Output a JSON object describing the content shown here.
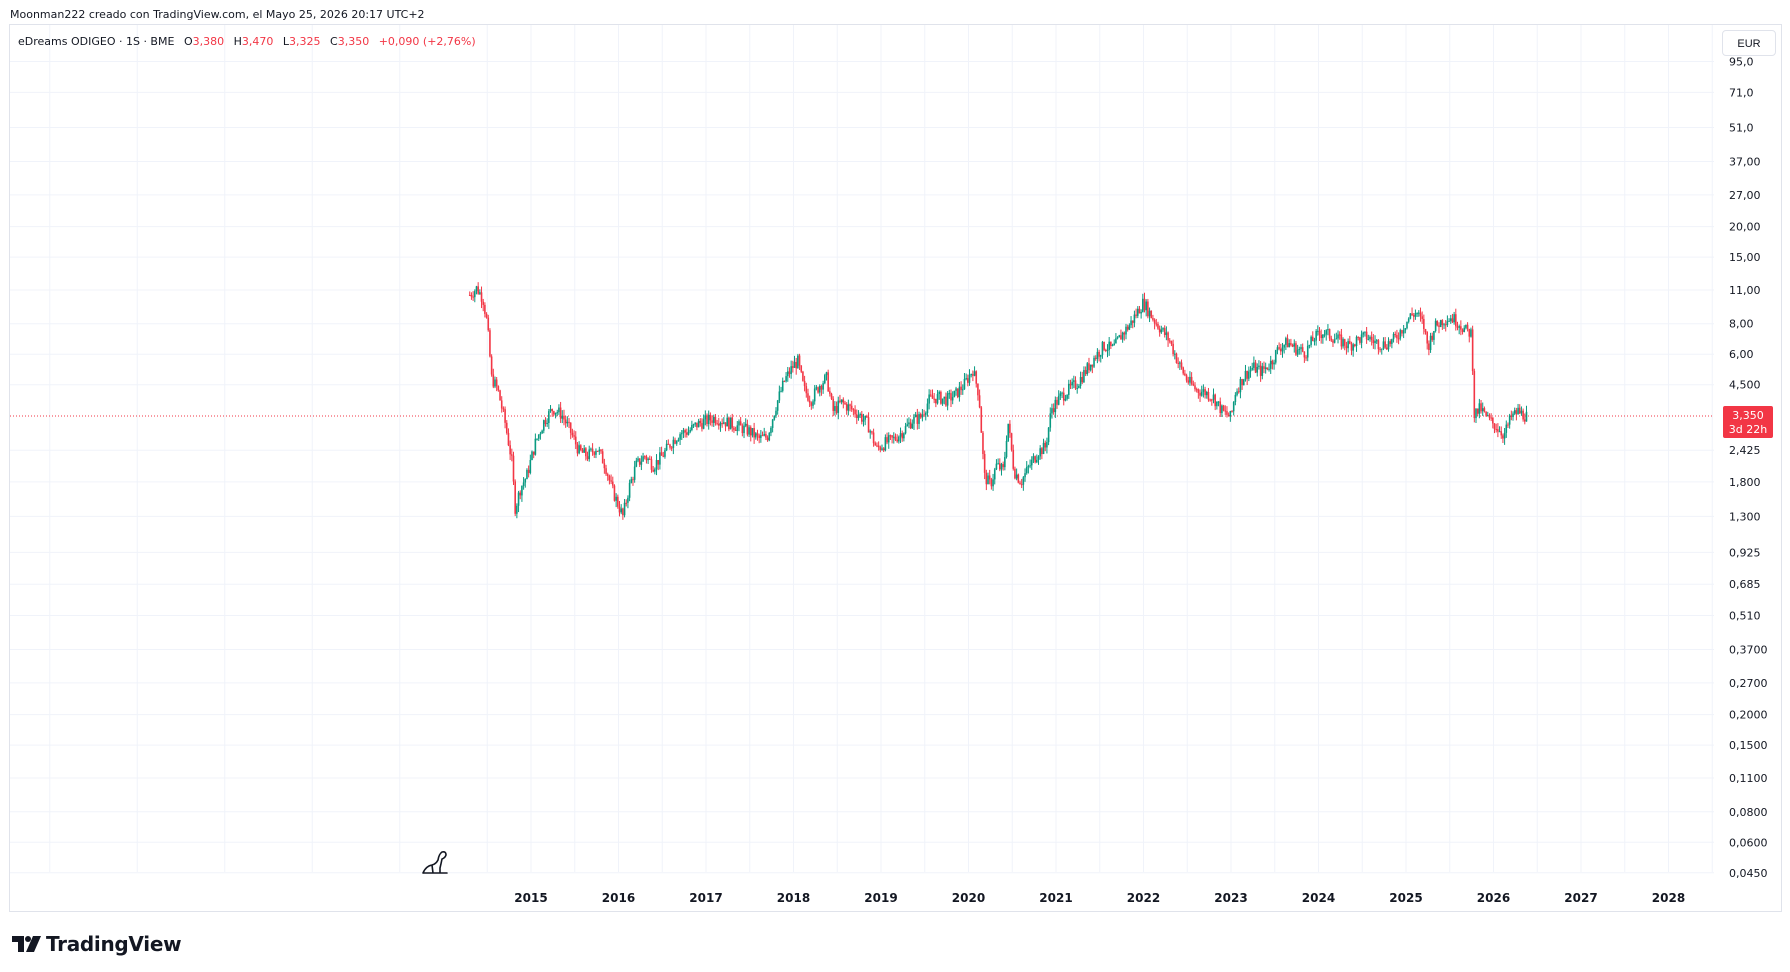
{
  "header": {
    "credit": "Moonman222 creado con TradingView.com, el Mayo 25, 2026 20:17 UTC+2"
  },
  "legend": {
    "symbol": "eDreams ODIGEO · 1S · BME",
    "o_key": "O",
    "o_val": "3,380",
    "h_key": "H",
    "h_val": "3,470",
    "l_key": "L",
    "l_val": "3,325",
    "c_key": "C",
    "c_val": "3,350",
    "change": "+0,090 (+2,76%)"
  },
  "currency": "EUR",
  "price_tag": {
    "price": "3,350",
    "countdown": "3d 22h"
  },
  "brand": {
    "name": "TradingView"
  },
  "colors": {
    "up": "#089981",
    "down": "#f23645",
    "grid": "#f0f3fa",
    "price_line": "#f23645"
  },
  "chart_data": {
    "type": "candlestick",
    "scale": "log",
    "interval": "1W",
    "y_ticks": [
      "95,0",
      "71,0",
      "51,0",
      "37,00",
      "27,00",
      "20,00",
      "15,00",
      "11,00",
      "8,00",
      "6,00",
      "4,500",
      "2,425",
      "1,800",
      "1,300",
      "0,925",
      "0,685",
      "0,510",
      "0,3700",
      "0,2700",
      "0,2000",
      "0,1500",
      "0,1100",
      "0,0800",
      "0,0600",
      "0,0450"
    ],
    "y_tick_values": [
      95,
      71,
      51,
      37,
      27,
      20,
      15,
      11,
      8,
      6,
      4.5,
      2.425,
      1.8,
      1.3,
      0.925,
      0.685,
      0.51,
      0.37,
      0.27,
      0.2,
      0.15,
      0.11,
      0.08,
      0.06,
      0.045
    ],
    "x_ticks": [
      "2015",
      "2016",
      "2017",
      "2018",
      "2019",
      "2020",
      "2021",
      "2022",
      "2023",
      "2024",
      "2025",
      "2026",
      "2027",
      "2028"
    ],
    "ylim": [
      0.04,
      100
    ],
    "xlim": [
      2009.0,
      2028.6
    ],
    "last_price": 3.35,
    "close_path": [
      [
        2014.3,
        10.5
      ],
      [
        2014.38,
        11.2
      ],
      [
        2014.45,
        10.2
      ],
      [
        2014.5,
        8.0
      ],
      [
        2014.55,
        4.8
      ],
      [
        2014.62,
        4.3
      ],
      [
        2014.7,
        3.2
      ],
      [
        2014.78,
        2.2
      ],
      [
        2014.82,
        1.4
      ],
      [
        2014.88,
        1.7
      ],
      [
        2014.95,
        1.9
      ],
      [
        2015.05,
        2.6
      ],
      [
        2015.15,
        3.2
      ],
      [
        2015.25,
        3.6
      ],
      [
        2015.35,
        3.4
      ],
      [
        2015.45,
        2.9
      ],
      [
        2015.55,
        2.4
      ],
      [
        2015.65,
        2.3
      ],
      [
        2015.75,
        2.5
      ],
      [
        2015.85,
        2.1
      ],
      [
        2015.92,
        1.7
      ],
      [
        2015.98,
        1.5
      ],
      [
        2016.05,
        1.3
      ],
      [
        2016.12,
        1.7
      ],
      [
        2016.2,
        2.1
      ],
      [
        2016.3,
        2.3
      ],
      [
        2016.4,
        2.1
      ],
      [
        2016.5,
        2.3
      ],
      [
        2016.6,
        2.6
      ],
      [
        2016.7,
        2.85
      ],
      [
        2016.8,
        2.9
      ],
      [
        2016.9,
        3.1
      ],
      [
        2017.0,
        3.2
      ],
      [
        2017.1,
        3.3
      ],
      [
        2017.2,
        3.2
      ],
      [
        2017.3,
        3.1
      ],
      [
        2017.4,
        3.0
      ],
      [
        2017.5,
        2.9
      ],
      [
        2017.6,
        2.7
      ],
      [
        2017.7,
        2.75
      ],
      [
        2017.8,
        3.7
      ],
      [
        2017.9,
        4.7
      ],
      [
        2018.0,
        5.4
      ],
      [
        2018.05,
        5.6
      ],
      [
        2018.12,
        4.3
      ],
      [
        2018.2,
        3.9
      ],
      [
        2018.3,
        4.5
      ],
      [
        2018.38,
        4.8
      ],
      [
        2018.45,
        3.5
      ],
      [
        2018.55,
        3.8
      ],
      [
        2018.65,
        3.6
      ],
      [
        2018.75,
        3.4
      ],
      [
        2018.85,
        3.1
      ],
      [
        2018.95,
        2.45
      ],
      [
        2019.05,
        2.6
      ],
      [
        2019.15,
        2.7
      ],
      [
        2019.25,
        2.9
      ],
      [
        2019.35,
        3.2
      ],
      [
        2019.45,
        3.3
      ],
      [
        2019.55,
        3.9
      ],
      [
        2019.65,
        4.0
      ],
      [
        2019.75,
        3.9
      ],
      [
        2019.85,
        4.1
      ],
      [
        2019.95,
        4.5
      ],
      [
        2020.05,
        5.2
      ],
      [
        2020.12,
        4.1
      ],
      [
        2020.18,
        1.9
      ],
      [
        2020.25,
        1.75
      ],
      [
        2020.32,
        2.1
      ],
      [
        2020.4,
        2.0
      ],
      [
        2020.45,
        3.2
      ],
      [
        2020.52,
        2.0
      ],
      [
        2020.6,
        1.8
      ],
      [
        2020.7,
        2.1
      ],
      [
        2020.8,
        2.4
      ],
      [
        2020.88,
        2.5
      ],
      [
        2020.95,
        3.6
      ],
      [
        2021.05,
        4.0
      ],
      [
        2021.15,
        4.3
      ],
      [
        2021.25,
        4.6
      ],
      [
        2021.35,
        5.2
      ],
      [
        2021.45,
        5.9
      ],
      [
        2021.55,
        6.5
      ],
      [
        2021.65,
        6.3
      ],
      [
        2021.75,
        7.2
      ],
      [
        2021.85,
        8.0
      ],
      [
        2021.95,
        9.2
      ],
      [
        2022.0,
        9.8
      ],
      [
        2022.1,
        8.5
      ],
      [
        2022.2,
        7.6
      ],
      [
        2022.3,
        6.8
      ],
      [
        2022.4,
        5.5
      ],
      [
        2022.5,
        4.7
      ],
      [
        2022.6,
        4.3
      ],
      [
        2022.7,
        4.2
      ],
      [
        2022.8,
        4.0
      ],
      [
        2022.9,
        3.5
      ],
      [
        2023.0,
        3.3
      ],
      [
        2023.05,
        4.2
      ],
      [
        2023.15,
        4.9
      ],
      [
        2023.25,
        5.3
      ],
      [
        2023.35,
        5.1
      ],
      [
        2023.45,
        5.5
      ],
      [
        2023.55,
        6.4
      ],
      [
        2023.65,
        6.7
      ],
      [
        2023.75,
        6.3
      ],
      [
        2023.85,
        6.1
      ],
      [
        2023.95,
        7.0
      ],
      [
        2024.05,
        7.4
      ],
      [
        2024.15,
        7.1
      ],
      [
        2024.25,
        6.8
      ],
      [
        2024.35,
        6.5
      ],
      [
        2024.45,
        6.9
      ],
      [
        2024.55,
        7.1
      ],
      [
        2024.65,
        6.7
      ],
      [
        2024.75,
        6.6
      ],
      [
        2024.85,
        6.8
      ],
      [
        2024.95,
        7.6
      ],
      [
        2025.05,
        8.6
      ],
      [
        2025.12,
        8.9
      ],
      [
        2025.2,
        7.9
      ],
      [
        2025.25,
        6.4
      ],
      [
        2025.32,
        7.7
      ],
      [
        2025.42,
        8.3
      ],
      [
        2025.52,
        8.5
      ],
      [
        2025.6,
        8.1
      ],
      [
        2025.68,
        7.5
      ],
      [
        2025.75,
        7.3
      ],
      [
        2025.78,
        3.4
      ],
      [
        2025.85,
        3.6
      ],
      [
        2025.92,
        3.3
      ],
      [
        2026.0,
        3.1
      ],
      [
        2026.05,
        3.0
      ],
      [
        2026.12,
        2.8
      ],
      [
        2026.2,
        3.3
      ],
      [
        2026.28,
        3.5
      ],
      [
        2026.33,
        3.4
      ],
      [
        2026.38,
        3.35
      ]
    ]
  }
}
